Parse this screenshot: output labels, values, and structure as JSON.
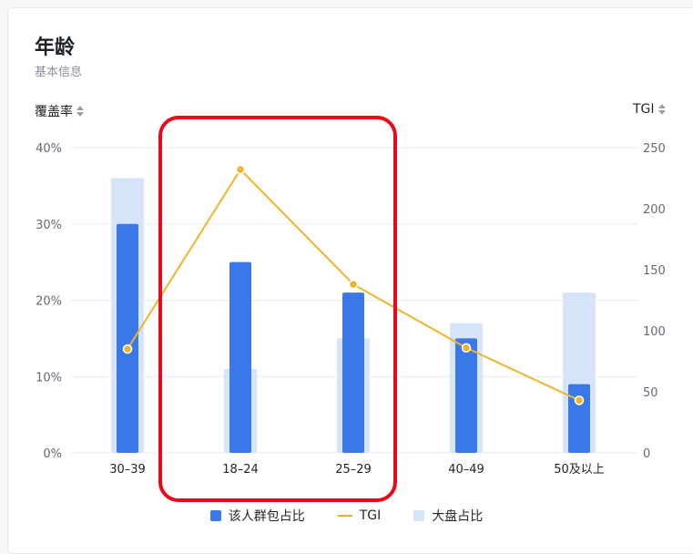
{
  "header": {
    "title": "年龄",
    "subtitle": "基本信息"
  },
  "axes": {
    "left_label": "覆盖率",
    "right_label": "TGI",
    "left_ticks": [
      "0%",
      "10%",
      "20%",
      "30%",
      "40%"
    ],
    "right_ticks": [
      "0",
      "50",
      "100",
      "150",
      "200",
      "250"
    ]
  },
  "legend": {
    "items": [
      "该人群包占比",
      "TGI",
      "大盘占比"
    ]
  },
  "colors": {
    "segment_bar": "#3b78e7",
    "market_bar": "#d6e4fa",
    "tgi_line": "#f0b42b",
    "highlight": "#e8091b"
  },
  "chart_data": {
    "type": "bar",
    "categories": [
      "30–39",
      "18–24",
      "25–29",
      "40–49",
      "50及以上"
    ],
    "series": [
      {
        "name": "该人群包占比",
        "type": "bar",
        "axis": "left",
        "values": [
          30,
          25,
          21,
          15,
          9
        ]
      },
      {
        "name": "大盘占比",
        "type": "bar",
        "axis": "left",
        "values": [
          36,
          11,
          15,
          17,
          21
        ]
      },
      {
        "name": "TGI",
        "type": "line",
        "axis": "right",
        "values": [
          85,
          232,
          138,
          86,
          43
        ]
      }
    ],
    "ylim_left": [
      0,
      40
    ],
    "ylim_right": [
      0,
      250
    ],
    "ylabel": "覆盖率",
    "y2label": "TGI",
    "grid": true,
    "legend_position": "bottom"
  }
}
